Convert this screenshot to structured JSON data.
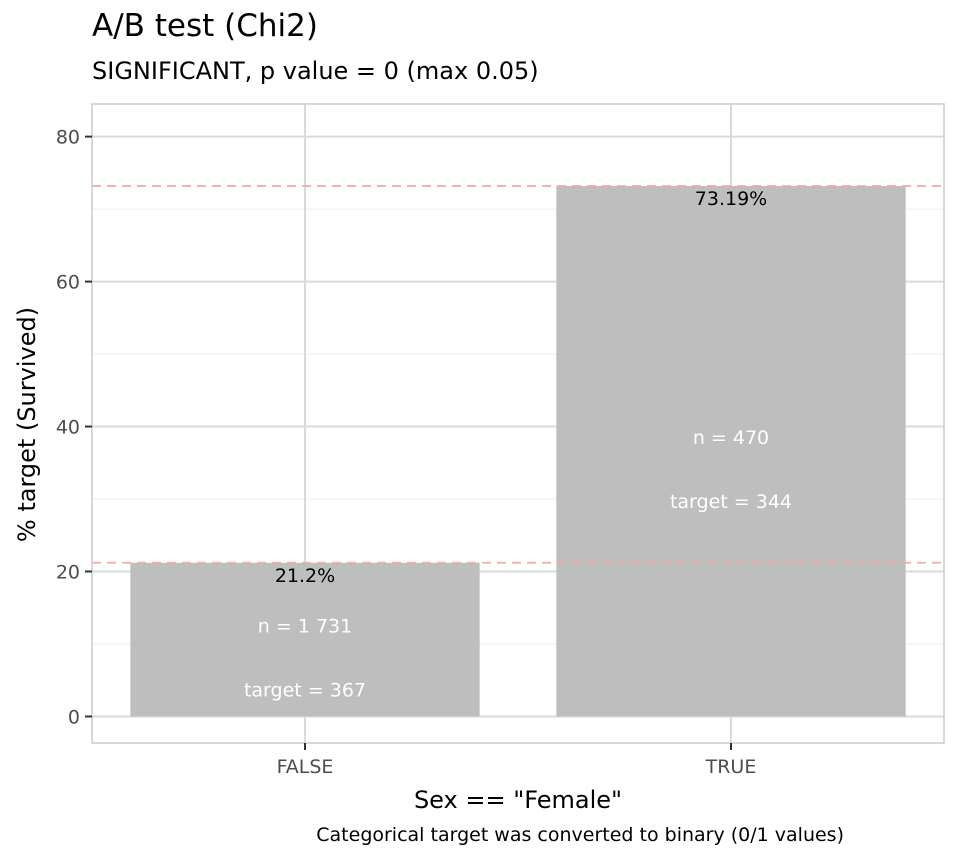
{
  "chart_data": {
    "type": "bar",
    "title": "A/B test (Chi2)",
    "subtitle": "SIGNIFICANT, p value = 0 (max 0.05)",
    "xlabel": "Sex == \"Female\"",
    "ylabel": "% target (Survived)",
    "caption": "Categorical target was converted to binary (0/1 values)",
    "categories": [
      "FALSE",
      "TRUE"
    ],
    "values": [
      21.2,
      73.19
    ],
    "value_labels": [
      "21.2%",
      "73.19%"
    ],
    "n_labels": [
      "n = 1 731",
      "n =   470"
    ],
    "target_labels": [
      "target = 367",
      "target = 344"
    ],
    "reference_lines": [
      21.2,
      73.19
    ],
    "ylim": [
      -3.66,
      84.5
    ],
    "y_ticks": [
      0,
      20,
      40,
      60,
      80
    ],
    "y_tick_labels": [
      "0",
      "20",
      "40",
      "60",
      "80"
    ],
    "grid": true,
    "colors": {
      "bar": "#bebebe",
      "reference_line": "#f4a6a0",
      "panel_border": "#cccccc",
      "grid_major": "#dadada",
      "grid_minor": "#ececec"
    }
  }
}
